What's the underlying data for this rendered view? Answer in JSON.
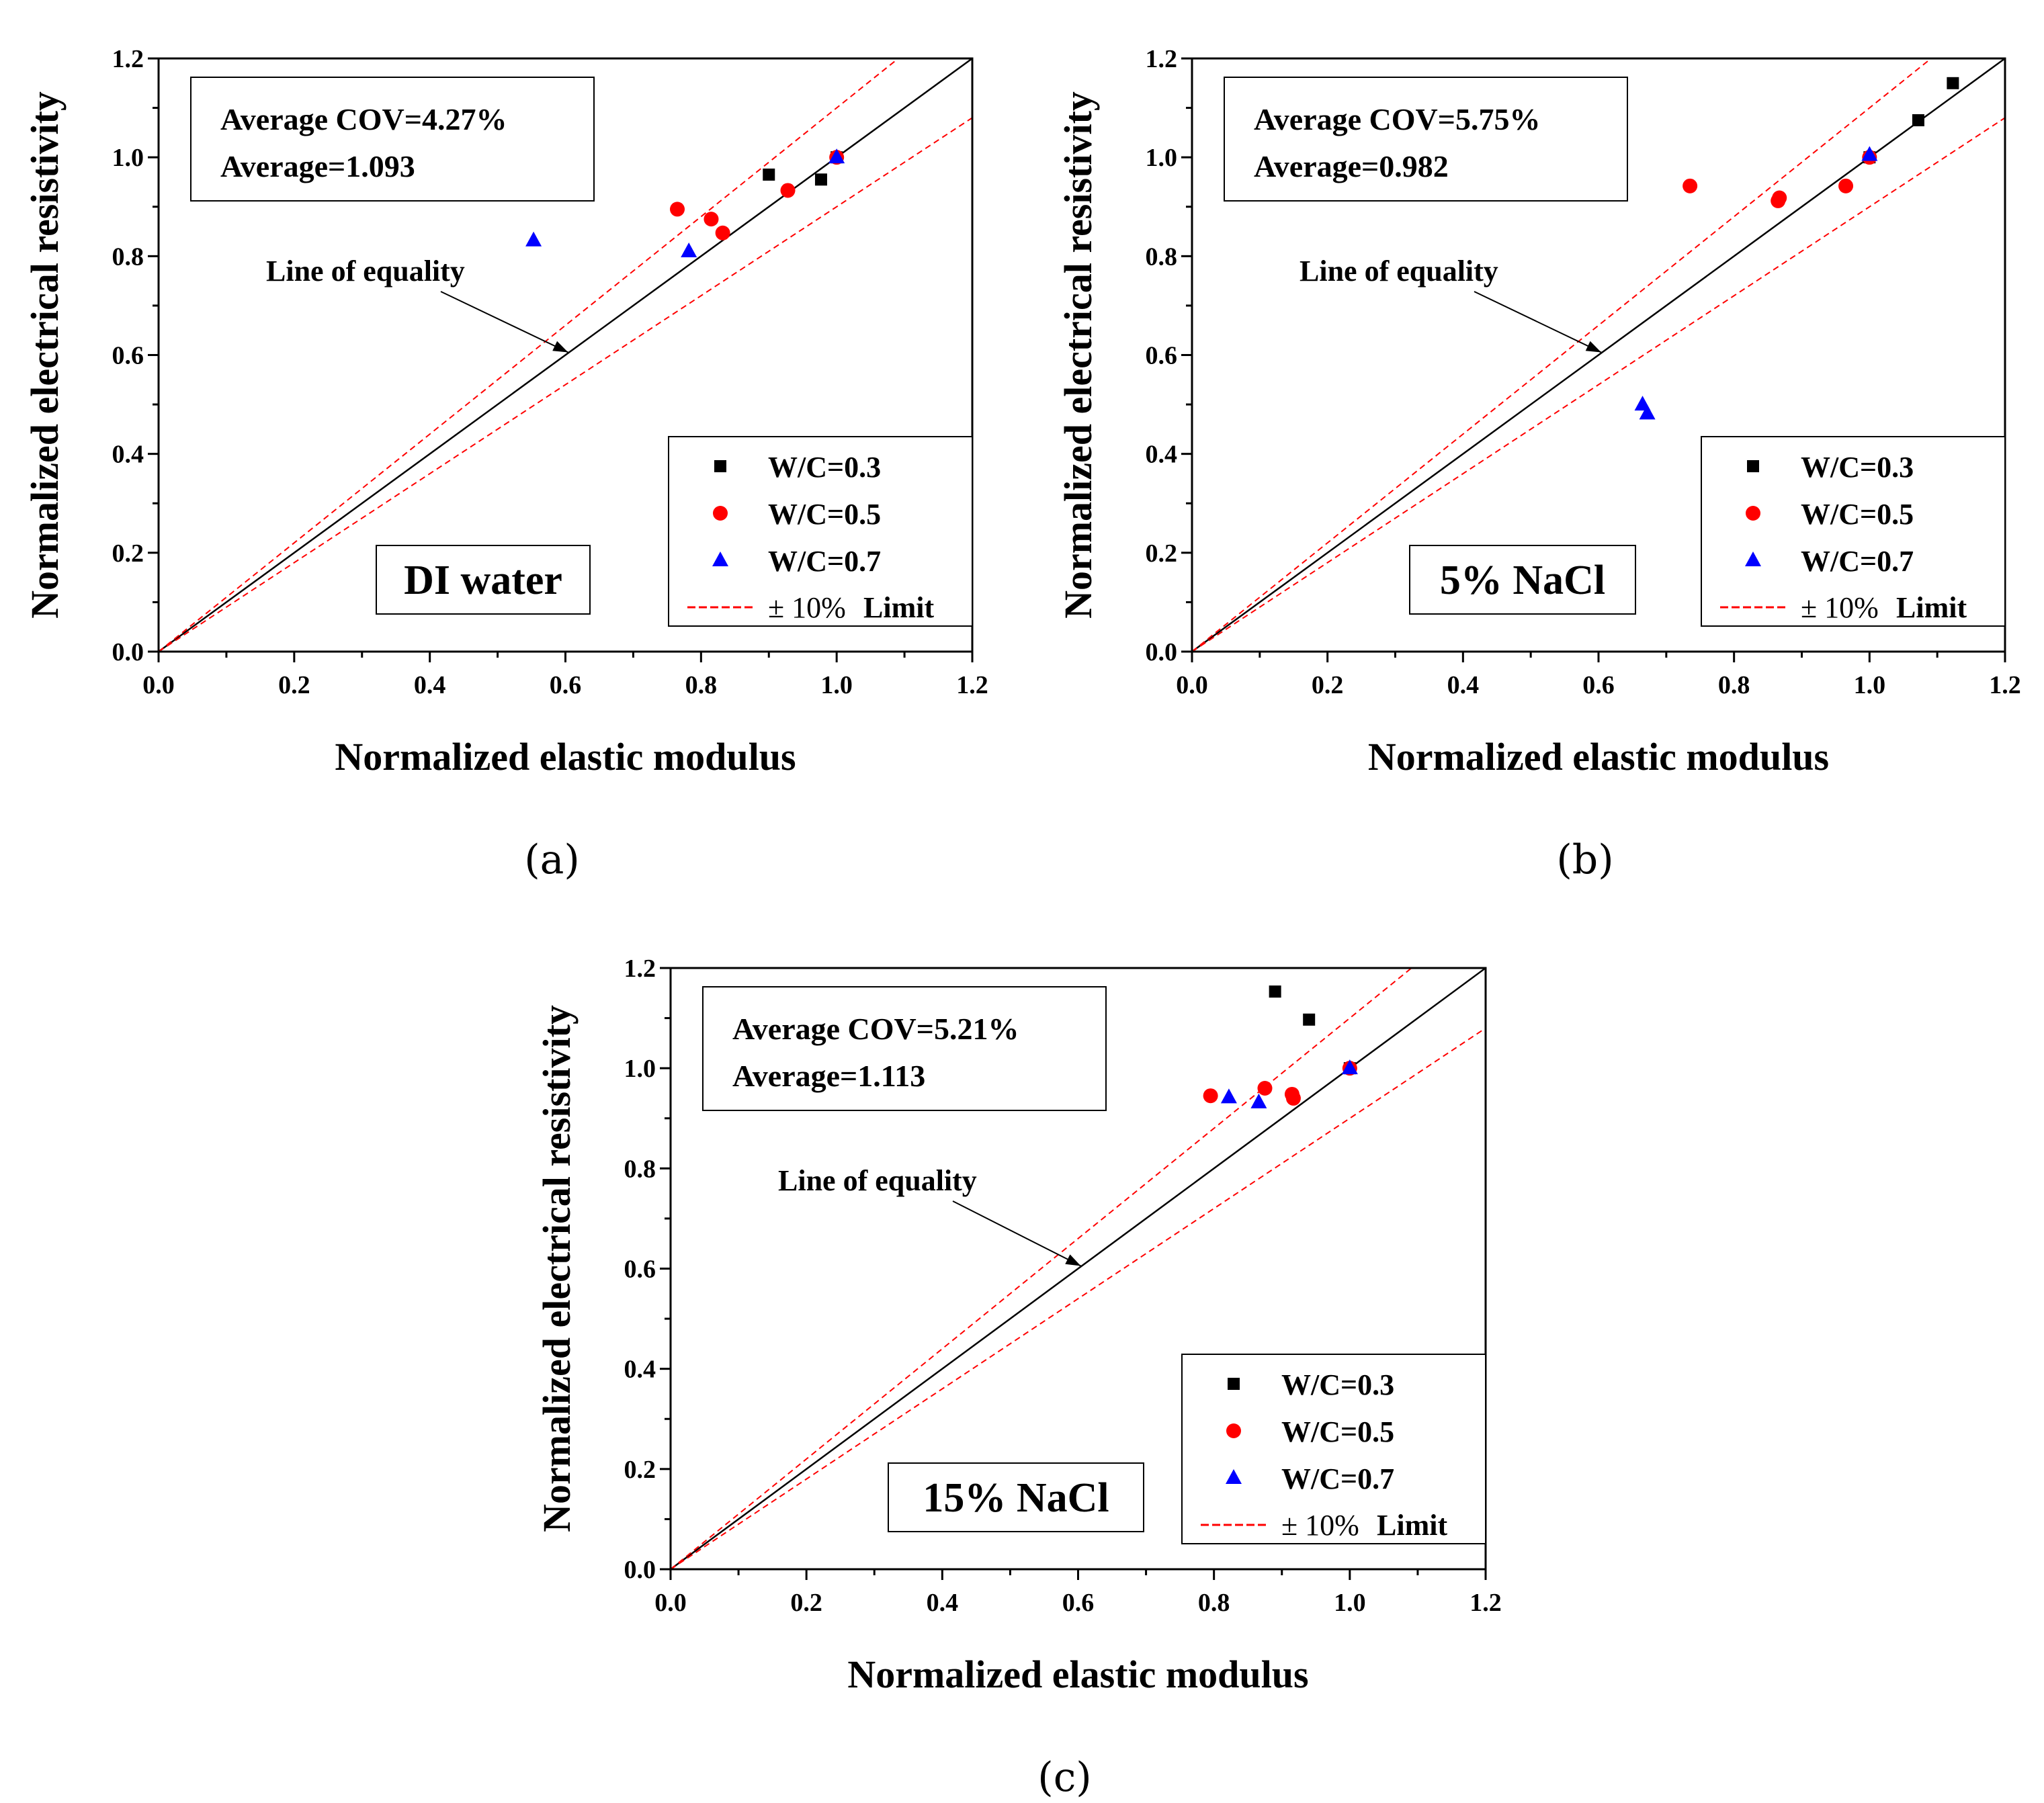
{
  "colors": {
    "series_wc03": "#000000",
    "series_wc05": "#ff0000",
    "series_wc07": "#0000ff",
    "equality_line": "#000000",
    "limit_line": "#ff0000"
  },
  "chart_data": [
    {
      "type": "scatter",
      "panel_label": "(a)",
      "condition": "DI water",
      "xlabel": "Normalized elastic modulus",
      "ylabel": "Normalized electrical resistivity",
      "xlim": [
        0.0,
        1.2
      ],
      "ylim": [
        0.0,
        1.2
      ],
      "xticks": [
        "0.0",
        "0.2",
        "0.4",
        "0.6",
        "0.8",
        "1.0",
        "1.2"
      ],
      "yticks": [
        "0.0",
        "0.2",
        "0.4",
        "0.6",
        "0.8",
        "1.0",
        "1.2"
      ],
      "stats": {
        "cov": "Average COV=4.27%",
        "average": "Average=1.093"
      },
      "annotation": "Line of equality",
      "legend": {
        "w03": "W/C=0.3",
        "w05": "W/C=0.5",
        "w07": "W/C=0.7",
        "limit_prefix": "± 10%",
        "limit_suffix": "Limit"
      },
      "series": [
        {
          "name": "W/C=0.3",
          "marker": "square",
          "x": [
            0.9,
            0.977,
            1.0
          ],
          "y": [
            0.965,
            0.955,
            1.0
          ]
        },
        {
          "name": "W/C=0.5",
          "marker": "circle",
          "x": [
            0.765,
            0.815,
            0.832,
            0.928,
            1.0
          ],
          "y": [
            0.895,
            0.875,
            0.847,
            0.933,
            1.0
          ]
        },
        {
          "name": "W/C=0.7",
          "marker": "triangle",
          "x": [
            0.553,
            0.782,
            1.0
          ],
          "y": [
            0.832,
            0.81,
            1.0
          ]
        }
      ]
    },
    {
      "type": "scatter",
      "panel_label": "(b)",
      "condition": "5% NaCl",
      "xlabel": "Normalized elastic modulus",
      "ylabel": "Normalized electrical resistivity",
      "xlim": [
        0.0,
        1.2
      ],
      "ylim": [
        0.0,
        1.2
      ],
      "xticks": [
        "0.0",
        "0.2",
        "0.4",
        "0.6",
        "0.8",
        "1.0",
        "1.2"
      ],
      "yticks": [
        "0.0",
        "0.2",
        "0.4",
        "0.6",
        "0.8",
        "1.0",
        "1.2"
      ],
      "stats": {
        "cov": "Average COV=5.75%",
        "average": "Average=0.982"
      },
      "annotation": "Line of equality",
      "legend": {
        "w03": "W/C=0.3",
        "w05": "W/C=0.5",
        "w07": "W/C=0.7",
        "limit_prefix": "± 10%",
        "limit_suffix": "Limit"
      },
      "series": [
        {
          "name": "W/C=0.3",
          "marker": "square",
          "x": [
            1.0,
            1.072,
            1.123
          ],
          "y": [
            1.0,
            1.075,
            1.15
          ]
        },
        {
          "name": "W/C=0.5",
          "marker": "circle",
          "x": [
            0.735,
            0.865,
            0.867,
            0.965,
            1.0
          ],
          "y": [
            0.942,
            0.912,
            0.918,
            0.942,
            1.0
          ]
        },
        {
          "name": "W/C=0.7",
          "marker": "triangle",
          "x": [
            0.665,
            0.672,
            1.0
          ],
          "y": [
            0.5,
            0.482,
            1.005
          ]
        }
      ]
    },
    {
      "type": "scatter",
      "panel_label": "(c)",
      "condition": "15% NaCl",
      "xlabel": "Normalized elastic modulus",
      "ylabel": "Normalized electrical resistivity",
      "xlim": [
        0.0,
        1.2
      ],
      "ylim": [
        0.0,
        1.2
      ],
      "xticks": [
        "0.0",
        "0.2",
        "0.4",
        "0.6",
        "0.8",
        "1.0",
        "1.2"
      ],
      "yticks": [
        "0.0",
        "0.2",
        "0.4",
        "0.6",
        "0.8",
        "1.0",
        "1.2"
      ],
      "stats": {
        "cov": "Average COV=5.21%",
        "average": "Average=1.113"
      },
      "annotation": "Line of equality",
      "legend": {
        "w03": "W/C=0.3",
        "w05": "W/C=0.5",
        "w07": "W/C=0.7",
        "limit_prefix": "± 10%",
        "limit_suffix": "Limit"
      },
      "series": [
        {
          "name": "W/C=0.3",
          "marker": "square",
          "x": [
            0.89,
            0.94,
            1.0
          ],
          "y": [
            1.153,
            1.097,
            1.0
          ]
        },
        {
          "name": "W/C=0.5",
          "marker": "circle",
          "x": [
            0.795,
            0.875,
            0.915,
            0.917,
            1.0
          ],
          "y": [
            0.945,
            0.96,
            0.948,
            0.94,
            1.0
          ]
        },
        {
          "name": "W/C=0.7",
          "marker": "triangle",
          "x": [
            0.822,
            0.866,
            1.0
          ],
          "y": [
            0.942,
            0.932,
            1.0
          ]
        }
      ]
    }
  ]
}
